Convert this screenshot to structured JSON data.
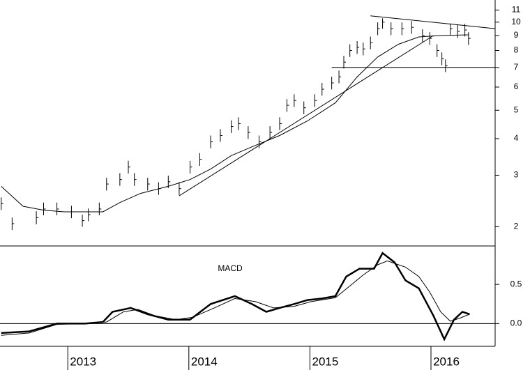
{
  "chart_data": [
    {
      "type": "ohlc",
      "log_scale": true,
      "color": "#000000",
      "x": [
        2012.45,
        2012.54,
        2012.74,
        2012.8,
        2012.91,
        2013.03,
        2013.12,
        2013.17,
        2013.26,
        2013.32,
        2013.43,
        2013.5,
        2013.55,
        2013.66,
        2013.75,
        2013.83,
        2013.92,
        2014.01,
        2014.09,
        2014.18,
        2014.26,
        2014.35,
        2014.41,
        2014.49,
        2014.58,
        2014.67,
        2014.75,
        2014.81,
        2014.87,
        2014.95,
        2015.04,
        2015.1,
        2015.18,
        2015.24,
        2015.28,
        2015.33,
        2015.39,
        2015.44,
        2015.5,
        2015.56,
        2015.6,
        2015.67,
        2015.76,
        2015.84,
        2015.93,
        2015.99,
        2016.05,
        2016.09,
        2016.12,
        2016.16,
        2016.22,
        2016.28,
        2016.31
      ],
      "high": [
        2.52,
        2.15,
        2.26,
        2.42,
        2.42,
        2.36,
        2.2,
        2.31,
        2.42,
        2.94,
        3.05,
        3.36,
        3.05,
        2.94,
        2.84,
        2.99,
        2.84,
        3.36,
        3.57,
        4.1,
        4.31,
        4.62,
        4.73,
        4.41,
        4.1,
        4.41,
        4.73,
        5.46,
        5.67,
        5.36,
        5.67,
        6.2,
        6.51,
        6.83,
        7.67,
        8.4,
        8.61,
        8.51,
        8.93,
        9.98,
        10.3,
        9.98,
        9.98,
        10.08,
        9.45,
        9.24,
        8.4,
        7.88,
        7.46,
        9.9,
        9.77,
        9.87,
        9.24
      ],
      "low": [
        2.28,
        1.95,
        2.04,
        2.19,
        2.19,
        2.14,
        2.0,
        2.09,
        2.19,
        2.66,
        2.76,
        3.04,
        2.76,
        2.66,
        2.57,
        2.71,
        2.57,
        3.04,
        3.23,
        3.71,
        3.9,
        4.18,
        4.28,
        3.99,
        3.71,
        3.99,
        4.28,
        4.94,
        5.13,
        4.85,
        5.13,
        5.61,
        5.89,
        6.18,
        6.94,
        7.6,
        7.79,
        7.7,
        8.08,
        9.03,
        9.5,
        9.03,
        9.03,
        9.12,
        8.55,
        8.36,
        7.6,
        7.13,
        6.75,
        9.03,
        8.84,
        8.93,
        8.36
      ],
      "values": [
        2.4,
        2.05,
        2.15,
        2.3,
        2.3,
        2.25,
        2.1,
        2.2,
        2.3,
        2.8,
        2.9,
        3.2,
        2.9,
        2.8,
        2.7,
        2.85,
        2.7,
        3.2,
        3.4,
        3.9,
        4.1,
        4.4,
        4.5,
        4.2,
        3.9,
        4.2,
        4.5,
        5.2,
        5.4,
        5.1,
        5.4,
        5.9,
        6.2,
        6.5,
        7.3,
        8.0,
        8.2,
        8.1,
        8.5,
        9.5,
        10.0,
        9.5,
        9.5,
        9.6,
        9.0,
        8.8,
        8.0,
        7.5,
        7.1,
        9.5,
        9.3,
        9.4,
        8.8
      ],
      "moving_average": {
        "x": [
          2012.45,
          2012.63,
          2012.8,
          2012.97,
          2013.29,
          2013.43,
          2013.6,
          2013.83,
          2014.01,
          2014.18,
          2014.35,
          2014.52,
          2014.75,
          2014.98,
          2015.21,
          2015.39,
          2015.56,
          2015.73,
          2015.9,
          2016.08,
          2016.31
        ],
        "values": [
          2.75,
          2.35,
          2.28,
          2.25,
          2.25,
          2.42,
          2.6,
          2.75,
          2.9,
          3.15,
          3.5,
          3.75,
          4.1,
          4.6,
          5.3,
          6.5,
          7.6,
          8.4,
          8.9,
          9.0,
          9.05
        ]
      },
      "trendlines": [
        {
          "x": [
            2013.92,
            2016.02
          ],
          "values": [
            2.55,
            9.0
          ]
        },
        {
          "x": [
            2015.5,
            2016.53
          ],
          "values": [
            10.5,
            9.5
          ]
        },
        {
          "x": [
            2015.18,
            2016.53
          ],
          "values": [
            7.0,
            7.0
          ]
        }
      ],
      "xlim": [
        2012.44,
        2016.53
      ],
      "ylim": [
        1.72,
        11.9
      ],
      "yticks": [
        2,
        3,
        4,
        5,
        6,
        7,
        8,
        9,
        10,
        11
      ]
    },
    {
      "type": "line",
      "title": "MACD",
      "series": [
        {
          "color": "#000000",
          "width": 2.5,
          "x": [
            2012.45,
            2012.68,
            2012.91,
            2013.14,
            2013.29,
            2013.37,
            2013.52,
            2013.66,
            2013.83,
            2014.01,
            2014.18,
            2014.38,
            2014.52,
            2014.64,
            2014.75,
            2014.87,
            2014.98,
            2015.1,
            2015.21,
            2015.3,
            2015.41,
            2015.53,
            2015.6,
            2015.7,
            2015.79,
            2015.9,
            2016.02,
            2016.11,
            2016.19,
            2016.26,
            2016.32
          ],
          "values": [
            -0.12,
            -0.1,
            0.0,
            0.0,
            0.02,
            0.15,
            0.2,
            0.12,
            0.05,
            0.05,
            0.25,
            0.35,
            0.25,
            0.15,
            0.2,
            0.25,
            0.3,
            0.32,
            0.35,
            0.6,
            0.7,
            0.7,
            0.9,
            0.78,
            0.55,
            0.45,
            0.1,
            -0.2,
            0.05,
            0.15,
            0.12
          ]
        },
        {
          "color": "#000000",
          "width": 1,
          "x": [
            2012.45,
            2012.68,
            2012.91,
            2013.14,
            2013.32,
            2013.46,
            2013.58,
            2013.72,
            2013.89,
            2014.03,
            2014.21,
            2014.38,
            2014.55,
            2014.7,
            2014.87,
            2015.01,
            2015.21,
            2015.33,
            2015.44,
            2015.56,
            2015.64,
            2015.79,
            2015.9,
            2015.99,
            2016.08,
            2016.16,
            2016.24,
            2016.32
          ],
          "values": [
            -0.15,
            -0.12,
            -0.01,
            0.0,
            0.02,
            0.15,
            0.18,
            0.1,
            0.05,
            0.08,
            0.2,
            0.32,
            0.28,
            0.2,
            0.22,
            0.28,
            0.33,
            0.48,
            0.62,
            0.75,
            0.8,
            0.72,
            0.6,
            0.4,
            0.15,
            0.03,
            0.07,
            0.12
          ]
        }
      ],
      "xlim": [
        2012.44,
        2016.53
      ],
      "xticks": [
        2013,
        2014,
        2015,
        2016
      ],
      "ylim": [
        -0.29,
        0.99
      ],
      "yticks": [
        {
          "value": 0,
          "label": "0.0"
        },
        {
          "value": 0.5,
          "label": "0.5"
        }
      ],
      "zero_line": true
    }
  ]
}
